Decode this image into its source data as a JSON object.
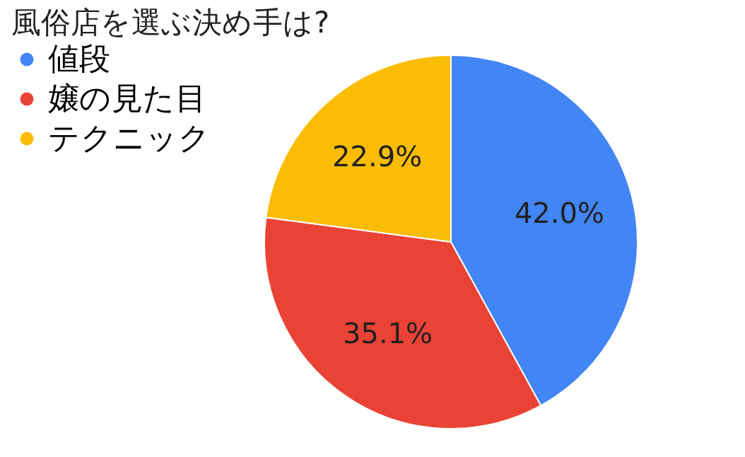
{
  "chart_data": {
    "type": "pie",
    "title": "風俗店を選ぶ決め手は?",
    "categories": [
      "値段",
      "嬢の見た目",
      "テクニック"
    ],
    "values": [
      42.0,
      35.1,
      22.9
    ],
    "colors": [
      "#4285f4",
      "#ea4335",
      "#fbbc04"
    ],
    "value_labels": [
      "42.0%",
      "35.1%",
      "22.9%"
    ],
    "legend": "left"
  }
}
